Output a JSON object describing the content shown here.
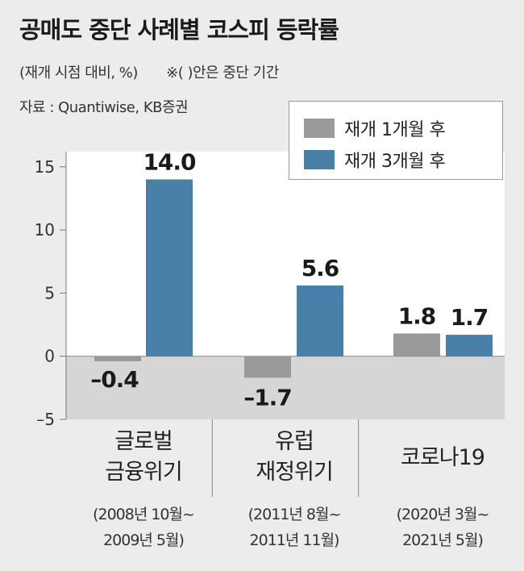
{
  "title": "공매도 중단 사례별 코스피 등락률",
  "subtitle": "(재개 시점 대비, %)",
  "note": "※(  )안은 중단 기간",
  "source": "자료 : Quantiwise, KB증권",
  "colors": {
    "series1": "#9a9a9c",
    "series2": "#4880aa",
    "negative_band": "#d6d6d6",
    "panel": "#ffffff"
  },
  "chart_data": {
    "type": "bar",
    "categories": [
      {
        "name_lines": [
          "글로벌",
          "금융위기"
        ],
        "period_lines": [
          "(2008년 10월~",
          "2009년 5월)"
        ]
      },
      {
        "name_lines": [
          "유럽",
          "재정위기"
        ],
        "period_lines": [
          "(2011년 8월~",
          "2011년 11월)"
        ]
      },
      {
        "name_lines": [
          "코로나19"
        ],
        "period_lines": [
          "(2020년 3월~",
          "2021년 5월)"
        ]
      }
    ],
    "series": [
      {
        "name": "재개 1개월 후",
        "values": [
          -0.4,
          -1.7,
          1.8
        ],
        "labels": [
          "",
          "–1.7",
          "1.8"
        ]
      },
      {
        "name": "재개 3개월 후",
        "values": [
          14.0,
          5.6,
          1.7
        ],
        "labels": [
          "14.0",
          "5.6",
          "1.7"
        ]
      }
    ],
    "extra_labels": [
      "–0.4"
    ],
    "yticks": [
      "15",
      "10",
      "5",
      "0",
      "–5"
    ],
    "ytick_values": [
      15,
      10,
      5,
      0,
      -5
    ],
    "ylim": [
      -5,
      16.2
    ],
    "legend_position": "top-right",
    "grid": false
  }
}
